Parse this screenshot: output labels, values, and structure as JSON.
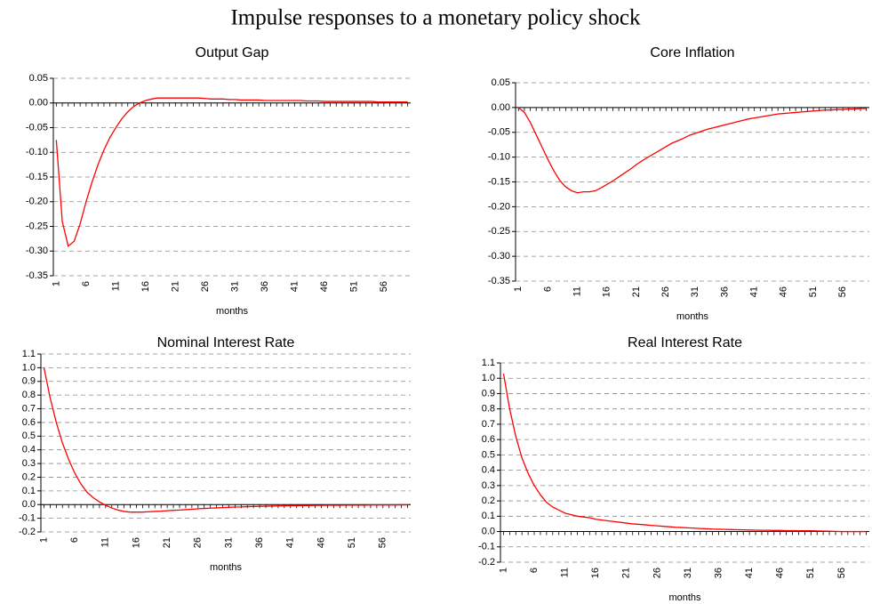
{
  "title": "Impulse responses to a monetary policy shock",
  "chart_data": [
    {
      "type": "line",
      "title": "Output Gap",
      "x_label": "months",
      "color": "#ff0000",
      "grid": true,
      "x": [
        1,
        2,
        3,
        4,
        5,
        6,
        7,
        8,
        9,
        10,
        11,
        12,
        13,
        14,
        15,
        16,
        17,
        18,
        19,
        20,
        21,
        22,
        23,
        24,
        25,
        26,
        27,
        28,
        29,
        30,
        31,
        32,
        33,
        34,
        35,
        36,
        37,
        38,
        39,
        40,
        41,
        42,
        43,
        44,
        45,
        46,
        47,
        48,
        49,
        50,
        51,
        52,
        53,
        54,
        55,
        56,
        57,
        58,
        59,
        60
      ],
      "values": [
        -0.075,
        -0.24,
        -0.29,
        -0.28,
        -0.245,
        -0.2,
        -0.16,
        -0.125,
        -0.095,
        -0.07,
        -0.05,
        -0.032,
        -0.018,
        -0.007,
        0,
        0.005,
        0.008,
        0.01,
        0.01,
        0.01,
        0.01,
        0.01,
        0.01,
        0.01,
        0.01,
        0.009,
        0.008,
        0.008,
        0.008,
        0.007,
        0.007,
        0.006,
        0.006,
        0.006,
        0.006,
        0.005,
        0.005,
        0.005,
        0.005,
        0.005,
        0.005,
        0.005,
        0.004,
        0.004,
        0.004,
        0.003,
        0.003,
        0.003,
        0.003,
        0.003,
        0.003,
        0.003,
        0.003,
        0.003,
        0.002,
        0.002,
        0.002,
        0.002,
        0.002,
        0.002
      ],
      "xlim": [
        0.5,
        60.5
      ],
      "xticks": [
        1,
        6,
        11,
        16,
        21,
        26,
        31,
        36,
        41,
        46,
        51,
        56
      ],
      "ylim": [
        -0.35,
        0.05
      ],
      "yticks": [
        0.05,
        {
          "value": 0,
          "label": "0.00"
        },
        -0.05,
        {
          "value": -0.1,
          "label": "-0.10"
        },
        -0.15,
        {
          "value": -0.2,
          "label": "-0.20"
        },
        -0.25,
        {
          "value": -0.3,
          "label": "-0.30"
        },
        -0.35
      ]
    },
    {
      "type": "line",
      "title": "Core Inflation",
      "x_label": "months",
      "color": "#ff0000",
      "grid": true,
      "x": [
        1,
        2,
        3,
        4,
        5,
        6,
        7,
        8,
        9,
        10,
        11,
        12,
        13,
        14,
        15,
        16,
        17,
        18,
        19,
        20,
        21,
        22,
        23,
        24,
        25,
        26,
        27,
        28,
        29,
        30,
        31,
        32,
        33,
        34,
        35,
        36,
        37,
        38,
        39,
        40,
        41,
        42,
        43,
        44,
        45,
        46,
        47,
        48,
        49,
        50,
        51,
        52,
        53,
        54,
        55,
        56,
        57,
        58,
        59,
        60
      ],
      "values": [
        0,
        -0.01,
        -0.03,
        -0.055,
        -0.08,
        -0.105,
        -0.128,
        -0.147,
        -0.16,
        -0.168,
        -0.172,
        -0.17,
        -0.17,
        -0.168,
        -0.162,
        -0.155,
        -0.148,
        -0.14,
        -0.132,
        -0.124,
        -0.115,
        -0.107,
        -0.1,
        -0.093,
        -0.086,
        -0.079,
        -0.072,
        -0.067,
        -0.062,
        -0.056,
        -0.052,
        -0.048,
        -0.044,
        -0.041,
        -0.038,
        -0.035,
        -0.032,
        -0.029,
        -0.026,
        -0.023,
        -0.021,
        -0.019,
        -0.017,
        -0.015,
        -0.013,
        -0.012,
        -0.011,
        -0.01,
        -0.009,
        -0.008,
        -0.007,
        -0.006,
        -0.005,
        -0.005,
        -0.004,
        -0.004,
        -0.003,
        -0.003,
        -0.002,
        -0.002
      ],
      "xlim": [
        0.5,
        60.5
      ],
      "xticks": [
        1,
        6,
        11,
        16,
        21,
        26,
        31,
        36,
        41,
        46,
        51,
        56
      ],
      "ylim": [
        -0.35,
        0.05
      ],
      "yticks": [
        0.05,
        {
          "value": 0,
          "label": "0.00"
        },
        -0.05,
        {
          "value": -0.1,
          "label": "-0.10"
        },
        -0.15,
        {
          "value": -0.2,
          "label": "-0.20"
        },
        -0.25,
        {
          "value": -0.3,
          "label": "-0.30"
        },
        -0.35
      ]
    },
    {
      "type": "line",
      "title": "Nominal Interest Rate",
      "x_label": "months",
      "color": "#ff0000",
      "grid": true,
      "x": [
        1,
        2,
        3,
        4,
        5,
        6,
        7,
        8,
        9,
        10,
        11,
        12,
        13,
        14,
        15,
        16,
        17,
        18,
        19,
        20,
        21,
        22,
        23,
        24,
        25,
        26,
        27,
        28,
        29,
        30,
        31,
        32,
        33,
        34,
        35,
        36,
        37,
        38,
        39,
        40,
        41,
        42,
        43,
        44,
        45,
        46,
        47,
        48,
        49,
        50,
        51,
        52,
        53,
        54,
        55,
        56,
        57,
        58,
        59,
        60
      ],
      "values": [
        1,
        0.78,
        0.6,
        0.45,
        0.33,
        0.23,
        0.15,
        0.09,
        0.05,
        0.02,
        -0.005,
        -0.025,
        -0.04,
        -0.05,
        -0.055,
        -0.055,
        -0.055,
        -0.052,
        -0.05,
        -0.048,
        -0.045,
        -0.042,
        -0.04,
        -0.037,
        -0.034,
        -0.031,
        -0.028,
        -0.026,
        -0.024,
        -0.022,
        -0.02,
        -0.018,
        -0.017,
        -0.015,
        -0.014,
        -0.013,
        -0.012,
        -0.011,
        -0.01,
        -0.009,
        -0.008,
        -0.008,
        -0.007,
        -0.007,
        -0.006,
        -0.006,
        -0.005,
        -0.005,
        -0.005,
        -0.004,
        -0.004,
        -0.004,
        -0.004,
        -0.003,
        -0.003,
        -0.003,
        -0.003,
        -0.003,
        -0.002,
        -0.002
      ],
      "xlim": [
        0.5,
        60.5
      ],
      "xticks": [
        1,
        6,
        11,
        16,
        21,
        26,
        31,
        36,
        41,
        46,
        51,
        56
      ],
      "ylim": [
        -0.2,
        1.1
      ],
      "yticks": [
        1.1,
        {
          "value": 1,
          "label": "1.0"
        },
        0.9,
        0.8,
        0.7,
        0.6,
        0.5,
        0.4,
        0.3,
        0.2,
        0.1,
        {
          "value": 0,
          "label": "0.0"
        },
        -0.1,
        -0.2
      ]
    },
    {
      "type": "line",
      "title": "Real Interest Rate",
      "x_label": "months",
      "color": "#ff0000",
      "grid": true,
      "x": [
        1,
        2,
        3,
        4,
        5,
        6,
        7,
        8,
        9,
        10,
        11,
        12,
        13,
        14,
        15,
        16,
        17,
        18,
        19,
        20,
        21,
        22,
        23,
        24,
        25,
        26,
        27,
        28,
        29,
        30,
        31,
        32,
        33,
        34,
        35,
        36,
        37,
        38,
        39,
        40,
        41,
        42,
        43,
        44,
        45,
        46,
        47,
        48,
        49,
        50,
        51,
        52,
        53,
        54,
        55,
        56,
        57,
        58,
        59,
        60
      ],
      "values": [
        1.03,
        0.8,
        0.62,
        0.48,
        0.38,
        0.3,
        0.24,
        0.19,
        0.16,
        0.14,
        0.12,
        0.11,
        0.1,
        0.095,
        0.09,
        0.08,
        0.075,
        0.07,
        0.065,
        0.06,
        0.055,
        0.05,
        0.047,
        0.044,
        0.04,
        0.037,
        0.034,
        0.031,
        0.028,
        0.026,
        0.024,
        0.022,
        0.02,
        0.018,
        0.016,
        0.015,
        0.014,
        0.013,
        0.012,
        0.011,
        0.01,
        0.009,
        0.008,
        0.008,
        0.007,
        0.007,
        0.006,
        0.006,
        0.005,
        0.005,
        0.005,
        0.004,
        0.003,
        0.002,
        0.001,
        0,
        0,
        0,
        0,
        0
      ],
      "xlim": [
        0.5,
        60.5
      ],
      "xticks": [
        1,
        6,
        11,
        16,
        21,
        26,
        31,
        36,
        41,
        46,
        51,
        56
      ],
      "ylim": [
        -0.2,
        1.1
      ],
      "yticks": [
        1.1,
        {
          "value": 1,
          "label": "1.0"
        },
        0.9,
        0.8,
        0.7,
        0.6,
        0.5,
        0.4,
        0.3,
        0.2,
        0.1,
        {
          "value": 0,
          "label": "0.0"
        },
        -0.1,
        -0.2
      ]
    }
  ]
}
